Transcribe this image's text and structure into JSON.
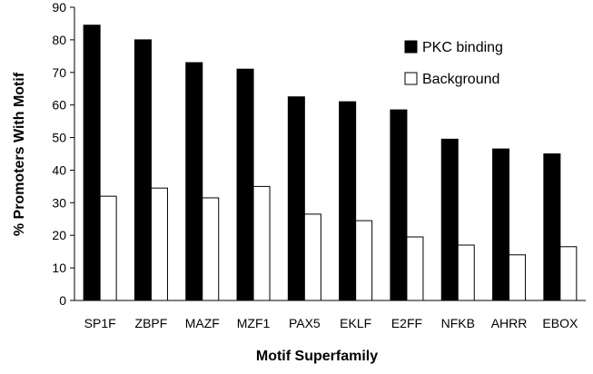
{
  "chart_data": {
    "type": "bar",
    "title": "",
    "xlabel": "Motif Superfamily",
    "ylabel": "% Promoters With Motif",
    "ylim": [
      0,
      90
    ],
    "yticks": [
      "0",
      "10",
      "20",
      "30",
      "40",
      "50",
      "60",
      "70",
      "80",
      "90"
    ],
    "categories": [
      "SP1F",
      "ZBPF",
      "MAZF",
      "MZF1",
      "PAX5",
      "EKLF",
      "E2FF",
      "NFKB",
      "AHRR",
      "EBOX"
    ],
    "series": [
      {
        "name": "PKC binding",
        "color": "#000000",
        "values": [
          84.5,
          80,
          73,
          71,
          62.5,
          61,
          58.5,
          49.5,
          46.5,
          45
        ]
      },
      {
        "name": "Background",
        "color": "#ffffff",
        "values": [
          32,
          34.5,
          31.5,
          35,
          26.5,
          24.5,
          19.5,
          17,
          14,
          16.5
        ]
      }
    ],
    "grid": false,
    "legend_position": "top-right"
  }
}
